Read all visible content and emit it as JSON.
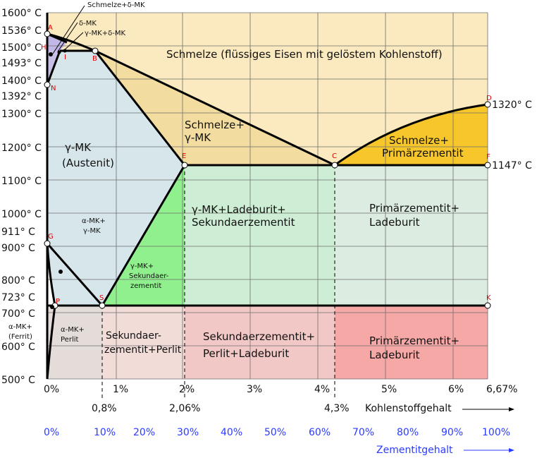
{
  "y_labels": [
    "1600° C",
    "1536° C",
    "1500° C",
    "1493° C",
    "1400° C",
    "1392° C",
    "1300° C",
    "1200° C",
    "1100° C",
    "1000° C",
    "911° C",
    "900° C",
    "800° C",
    "723° C",
    "700° C",
    "600° C",
    "500° C"
  ],
  "x_labels": [
    "0%",
    "1%",
    "2%",
    "3%",
    "4%",
    "5%",
    "6%",
    "6,67%"
  ],
  "x_special": [
    "0,8%",
    "2,06%",
    "4,3%"
  ],
  "carbon_axis_label": "Kohlenstoffgehalt",
  "cementite_labels": [
    "0%",
    "10%",
    "20%",
    "30%",
    "40%",
    "50%",
    "60%",
    "70%",
    "80%",
    "90%",
    "100%"
  ],
  "cementite_axis_label": "Zementitgehalt",
  "right_labels": {
    "d_temp": "1320° C",
    "f_temp": "1147° C"
  },
  "regions": {
    "melt": "Schmelze (flüssiges Eisen mit gelöstem Kohlenstoff)",
    "melt_gamma_1": "Schmelze+",
    "melt_gamma_2": "γ-MK",
    "melt_prim_1": "Schmelze+",
    "melt_prim_2": "Primärzementit",
    "austenite_1": "γ-MK",
    "austenite_2": "(Austenit)",
    "gamma_led_1": "γ-MK+Ladeburit+",
    "gamma_led_2": "Sekundaerzementit",
    "prim_led_1": "Primärzementit+",
    "prim_led_2": "Ladeburit",
    "alpha_gamma_1": "α-MK+",
    "alpha_gamma_2": "γ-MK",
    "gamma_sek_1": "γ-MK+",
    "gamma_sek_2": "Sekundaer-",
    "gamma_sek_3": "zementit",
    "alpha_perlit_1": "α-MK+",
    "alpha_perlit_2": "Perlit",
    "ferrit_1": "α-MK+",
    "ferrit_2": "(Ferrit)",
    "sek_perlit_1": "Sekundaer-",
    "sek_perlit_2": "zementit+Perlit",
    "sek_perlit_led_1": "Sekundaerzementit+",
    "sek_perlit_led_2": "Perlit+Ladeburit",
    "prim_led_low_1": "Primärzementit+",
    "prim_led_low_2": "Ladeburit",
    "schmelze_delta": "Schmelze+δ-MK",
    "delta": "δ-MK",
    "gamma_delta": "γ-MK+δ-MK"
  },
  "points": {
    "A": "A",
    "B": "B",
    "C": "C",
    "D": "D",
    "E": "E",
    "F": "F",
    "G": "G",
    "H": "H",
    "I": "I",
    "K": "K",
    "N": "N",
    "P": "P",
    "S": "S"
  },
  "colors": {
    "melt": "#fbeabf",
    "melt_gamma": "#f3dca0",
    "melt_prim": "#f7c62a",
    "austenite": "#d6e6ea",
    "gamma_led": "#cdeed4",
    "prim_led": "#dcece0",
    "gamma_sek": "#8ff08d",
    "lower_left": "#e4dcd8",
    "sek_perlit": "#f1dcd8",
    "sek_perlit_led": "#f2c8c6",
    "prim_led_low": "#f5a8a6",
    "delta": "#c2b8e8",
    "line": "#000000",
    "grid": "#6e6e6e",
    "point_label": "#e00000",
    "blue_axis": "#2b3bff"
  }
}
